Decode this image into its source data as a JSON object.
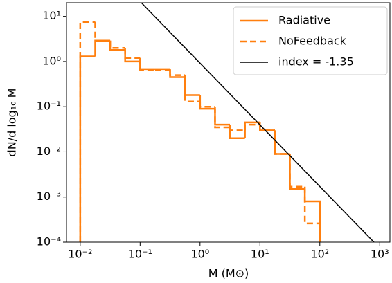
{
  "chart_data": {
    "type": "step-histogram",
    "x_label": "M (M⊙)",
    "y_label": "dN/d log₁₀ M",
    "log_x": true,
    "log_y": true,
    "grid": false,
    "legend": "upper right",
    "bins": [
      0.01,
      0.0178,
      0.0316,
      0.0562,
      0.1,
      0.178,
      0.316,
      0.562,
      1,
      1.78,
      3.16,
      5.62,
      10,
      17.8,
      31.6,
      56.2,
      100
    ],
    "series": [
      {
        "name": "Radiative",
        "color": "#ff7f0e",
        "style": "solid",
        "values": [
          1.3,
          2.9,
          1.8,
          1.0,
          0.68,
          0.68,
          0.45,
          0.18,
          0.09,
          0.04,
          0.02,
          0.045,
          0.03,
          0.009,
          0.0015,
          0.0008
        ]
      },
      {
        "name": "NoFeedback",
        "color": "#ff7f0e",
        "style": "dashed",
        "values": [
          7.5,
          2.9,
          2.0,
          1.2,
          0.65,
          0.65,
          0.5,
          0.13,
          0.1,
          0.035,
          0.03,
          0.04,
          0.03,
          0.009,
          0.0017,
          0.00026
        ]
      },
      {
        "name": "index = -1.35",
        "color": "#000000",
        "type": "line",
        "x": [
          0.105,
          800
        ],
        "values": [
          20,
          0.0001
        ]
      }
    ],
    "xlim": [
      0.0059,
      1480
    ],
    "ylim": [
      0.0001,
      20
    ],
    "xticks": [
      {
        "value": 0.01,
        "label": "10⁻²"
      },
      {
        "value": 0.1,
        "label": "10⁻¹"
      },
      {
        "value": 1,
        "label": "10⁰"
      },
      {
        "value": 10,
        "label": "10¹"
      },
      {
        "value": 100,
        "label": "10²"
      },
      {
        "value": 1000,
        "label": "10³"
      }
    ],
    "yticks": [
      {
        "value": 0.0001,
        "label": "10⁻⁴"
      },
      {
        "value": 0.001,
        "label": "10⁻³"
      },
      {
        "value": 0.01,
        "label": "10⁻²"
      },
      {
        "value": 0.1,
        "label": "10⁻¹"
      },
      {
        "value": 1,
        "label": "10⁰"
      },
      {
        "value": 10,
        "label": "10¹"
      }
    ]
  }
}
